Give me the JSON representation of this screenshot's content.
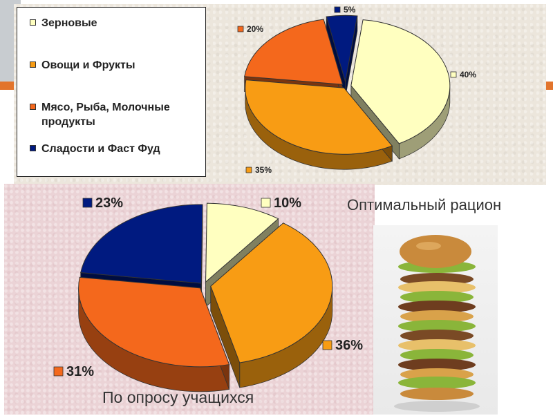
{
  "legend": {
    "items": [
      {
        "label": "Зерновые",
        "color": "#ffffc0"
      },
      {
        "label": "Овощи и Фрукты",
        "color": "#f89c14"
      },
      {
        "label": "Мясо, Рыба, Молочные продукты",
        "color": "#f4681c"
      },
      {
        "label": "Сладости и Фаст Фуд",
        "color": "#001a80"
      }
    ]
  },
  "captions": {
    "optimal": "Оптимальный рацион",
    "survey": "По опросу учащихся"
  },
  "photo": {
    "icon": "stacked-burger-icon"
  },
  "colors": {
    "accent": "#e2742c",
    "grain": "#ffffc0",
    "veg": "#f89c14",
    "meat": "#f4681c",
    "sweets": "#001a80"
  },
  "chart_data": [
    {
      "type": "pie",
      "style": "3d-exploded",
      "categories": [
        "Зерновые",
        "Овощи и Фрукты",
        "Мясо, Рыба, Молочные продукты",
        "Сладости и Фаст Фуд"
      ],
      "values": [
        40,
        35,
        20,
        5
      ],
      "labels": [
        "40%",
        "35%",
        "20%",
        "5%"
      ],
      "colors": [
        "#ffffc0",
        "#f89c14",
        "#f4681c",
        "#001a80"
      ],
      "caption": "Оптимальный рацион"
    },
    {
      "type": "pie",
      "style": "3d-exploded",
      "categories": [
        "Зерновые",
        "Овощи и Фрукты",
        "Мясо, Рыба, Молочные продукты",
        "Сладости и Фаст Фуд"
      ],
      "values": [
        10,
        36,
        31,
        23
      ],
      "labels": [
        "10%",
        "36%",
        "31%",
        "23%"
      ],
      "colors": [
        "#ffffc0",
        "#f89c14",
        "#f4681c",
        "#001a80"
      ],
      "caption": "По опросу учащихся"
    }
  ]
}
